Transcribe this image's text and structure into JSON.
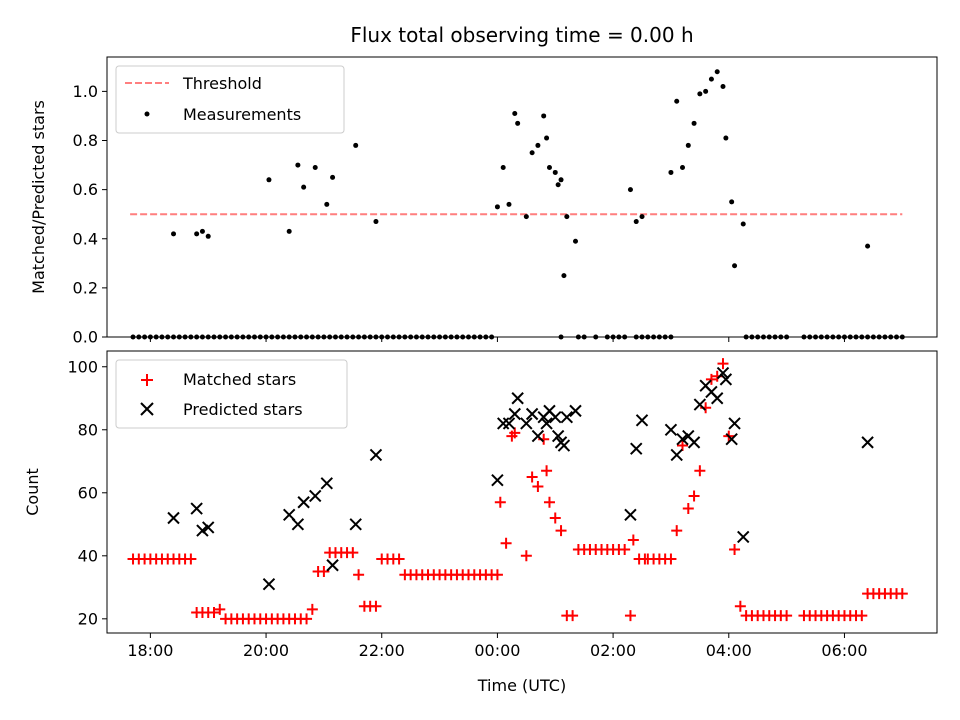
{
  "chart_data": [
    {
      "type": "scatter",
      "title": "Flux total observing time = 0.00 h",
      "xlabel": "",
      "ylabel": "Matched/Predicted stars",
      "xlim": [
        -6.75,
        7.6
      ],
      "ylim": [
        0,
        1.14
      ],
      "yticks": [
        0.0,
        0.2,
        0.4,
        0.6,
        0.8,
        1.0
      ],
      "ytick_labels": [
        "0.0",
        "0.2",
        "0.4",
        "0.6",
        "0.8",
        "1.0"
      ],
      "xticks": [
        -6,
        -4,
        -2,
        0,
        2,
        4,
        6
      ],
      "legend": {
        "position": "top-left"
      },
      "series": [
        {
          "name": "Threshold",
          "kind": "dashed-line",
          "color": "#ff7f7f",
          "x": [
            -6.35,
            7.0
          ],
          "y": [
            0.5,
            0.5
          ]
        },
        {
          "name": "Measurements",
          "kind": "dot",
          "color": "#000000",
          "x": [
            -6.3,
            -6.2,
            -6.1,
            -6.0,
            -5.9,
            -5.8,
            -5.7,
            -5.6,
            -5.5,
            -5.4,
            -5.3,
            -5.2,
            -5.1,
            -5.0,
            -4.9,
            -4.8,
            -4.7,
            -4.6,
            -4.5,
            -4.4,
            -4.3,
            -4.2,
            -4.1,
            -4.0,
            -3.9,
            -3.8,
            -3.7,
            -3.6,
            -3.5,
            -3.4,
            -3.3,
            -3.2,
            -3.1,
            -3.0,
            -2.9,
            -2.8,
            -2.7,
            -2.6,
            -2.5,
            -2.4,
            -2.3,
            -2.2,
            -2.1,
            -2.0,
            -1.9,
            -1.8,
            -1.7,
            -1.6,
            -1.5,
            -1.4,
            -1.3,
            -1.2,
            -1.1,
            -1.0,
            -0.9,
            -0.8,
            -0.7,
            -0.6,
            -0.5,
            -0.4,
            -0.3,
            -0.2,
            -0.1,
            1.1,
            1.4,
            1.5,
            1.7,
            1.9,
            2.0,
            2.1,
            2.2,
            2.4,
            2.5,
            2.6,
            2.7,
            2.8,
            2.9,
            3.0,
            4.3,
            4.4,
            4.5,
            4.6,
            4.7,
            4.8,
            4.9,
            5.0,
            5.3,
            5.4,
            5.5,
            5.6,
            5.7,
            5.8,
            5.9,
            6.0,
            6.1,
            6.2,
            6.3,
            6.4,
            6.5,
            6.6,
            6.7,
            6.8,
            6.9,
            7.0,
            -5.6,
            -5.2,
            -5.1,
            -5.0,
            -3.95,
            -3.6,
            -3.45,
            -3.35,
            -3.15,
            -2.95,
            -2.85,
            -2.45,
            -2.1,
            0.0,
            0.1,
            0.2,
            0.3,
            0.35,
            0.5,
            0.6,
            0.7,
            0.8,
            0.85,
            0.9,
            1.0,
            1.05,
            1.1,
            1.15,
            1.2,
            1.35,
            2.3,
            2.4,
            2.5,
            3.0,
            3.1,
            3.2,
            3.3,
            3.4,
            3.5,
            3.6,
            3.7,
            3.8,
            3.9,
            3.95,
            4.05,
            4.1,
            4.25,
            6.4
          ],
          "y": [
            0,
            0,
            0,
            0,
            0,
            0,
            0,
            0,
            0,
            0,
            0,
            0,
            0,
            0,
            0,
            0,
            0,
            0,
            0,
            0,
            0,
            0,
            0,
            0,
            0,
            0,
            0,
            0,
            0,
            0,
            0,
            0,
            0,
            0,
            0,
            0,
            0,
            0,
            0,
            0,
            0,
            0,
            0,
            0,
            0,
            0,
            0,
            0,
            0,
            0,
            0,
            0,
            0,
            0,
            0,
            0,
            0,
            0,
            0,
            0,
            0,
            0,
            0,
            0,
            0,
            0,
            0,
            0,
            0,
            0,
            0,
            0,
            0,
            0,
            0,
            0,
            0,
            0,
            0,
            0,
            0,
            0,
            0,
            0,
            0,
            0,
            0,
            0,
            0,
            0,
            0,
            0,
            0,
            0,
            0,
            0,
            0,
            0,
            0,
            0,
            0,
            0,
            0,
            0,
            0.42,
            0.42,
            0.43,
            0.41,
            0.64,
            0.43,
            0.7,
            0.61,
            0.69,
            0.54,
            0.65,
            0.78,
            0.47,
            0.53,
            0.69,
            0.54,
            0.91,
            0.87,
            0.49,
            0.75,
            0.78,
            0.9,
            0.81,
            0.69,
            0.67,
            0.62,
            0.64,
            0.25,
            0.49,
            0.39,
            0.6,
            0.47,
            0.49,
            0.67,
            0.96,
            0.69,
            0.78,
            0.87,
            0.99,
            1.0,
            1.05,
            1.08,
            1.02,
            0.81,
            0.55,
            0.29,
            0.46,
            0.37
          ]
        }
      ]
    },
    {
      "type": "scatter",
      "title": "",
      "xlabel": "Time (UTC)",
      "ylabel": "Count",
      "xlim": [
        -6.75,
        7.6
      ],
      "ylim": [
        15.5,
        105
      ],
      "yticks": [
        20,
        40,
        60,
        80,
        100
      ],
      "ytick_labels": [
        "20",
        "40",
        "60",
        "80",
        "100"
      ],
      "xticks": [
        -6,
        -4,
        -2,
        0,
        2,
        4,
        6
      ],
      "xtick_labels": [
        "18:00",
        "20:00",
        "22:00",
        "00:00",
        "02:00",
        "04:00",
        "06:00"
      ],
      "legend": {
        "position": "top-left"
      },
      "series": [
        {
          "name": "Matched stars",
          "kind": "plus",
          "color": "#ff0000",
          "x": [
            -6.3,
            -6.2,
            -6.1,
            -6.0,
            -5.9,
            -5.8,
            -5.7,
            -5.6,
            -5.5,
            -5.4,
            -5.3,
            -5.2,
            -5.1,
            -5.0,
            -4.9,
            -4.8,
            -4.7,
            -4.6,
            -4.5,
            -4.4,
            -4.3,
            -4.2,
            -4.1,
            -4.0,
            -3.9,
            -3.8,
            -3.7,
            -3.6,
            -3.5,
            -3.4,
            -3.3,
            -3.2,
            -3.1,
            -3.0,
            -2.9,
            -2.8,
            -2.7,
            -2.6,
            -2.5,
            -2.4,
            -2.3,
            -2.2,
            -2.1,
            -2.0,
            -1.9,
            -1.8,
            -1.7,
            -1.6,
            -1.5,
            -1.4,
            -1.3,
            -1.2,
            -1.1,
            -1.0,
            -0.9,
            -0.8,
            -0.7,
            -0.6,
            -0.5,
            -0.4,
            -0.3,
            -0.2,
            -0.1,
            0.0,
            0.05,
            0.15,
            0.25,
            0.3,
            0.5,
            0.6,
            0.7,
            0.8,
            0.85,
            0.9,
            1.0,
            1.1,
            1.2,
            1.3,
            1.4,
            1.5,
            1.6,
            1.7,
            1.8,
            1.9,
            2.0,
            2.1,
            2.2,
            2.3,
            2.35,
            2.45,
            2.55,
            2.6,
            2.7,
            2.8,
            2.9,
            3.0,
            3.1,
            3.2,
            3.3,
            3.4,
            3.5,
            3.6,
            3.7,
            3.8,
            3.9,
            4.0,
            4.1,
            4.2,
            4.3,
            4.4,
            4.5,
            4.6,
            4.7,
            4.8,
            4.9,
            5.0,
            5.3,
            5.4,
            5.5,
            5.6,
            5.7,
            5.8,
            5.9,
            6.0,
            6.1,
            6.2,
            6.3,
            6.4,
            6.5,
            6.6,
            6.7,
            6.8,
            6.9,
            7.0
          ],
          "y": [
            39,
            39,
            39,
            39,
            39,
            39,
            39,
            39,
            39,
            39,
            39,
            22,
            22,
            22,
            22,
            23,
            20,
            20,
            20,
            20,
            20,
            20,
            20,
            20,
            20,
            20,
            20,
            20,
            20,
            20,
            20,
            23,
            35,
            35,
            41,
            41,
            41,
            41,
            41,
            34,
            24,
            24,
            24,
            39,
            39,
            39,
            39,
            34,
            34,
            34,
            34,
            34,
            34,
            34,
            34,
            34,
            34,
            34,
            34,
            34,
            34,
            34,
            34,
            34,
            57,
            44,
            78,
            79,
            40,
            65,
            62,
            77,
            67,
            57,
            52,
            48,
            21,
            21,
            42,
            42,
            42,
            42,
            42,
            42,
            42,
            42,
            42,
            21,
            45,
            39,
            39,
            39,
            39,
            39,
            39,
            39,
            48,
            75,
            55,
            59,
            67,
            87,
            96,
            97,
            101,
            78,
            42,
            24,
            21,
            21,
            21,
            21,
            21,
            21,
            21,
            21,
            21,
            21,
            21,
            21,
            21,
            21,
            21,
            21,
            21,
            21,
            21,
            28,
            28,
            28,
            28,
            28,
            28,
            28
          ]
        },
        {
          "name": "Predicted stars",
          "kind": "x",
          "color": "#000000",
          "x": [
            -5.6,
            -5.2,
            -5.1,
            -5.0,
            -3.95,
            -3.6,
            -3.45,
            -3.35,
            -3.15,
            -2.95,
            -2.85,
            -2.45,
            -2.1,
            0.0,
            0.1,
            0.2,
            0.3,
            0.35,
            0.5,
            0.6,
            0.7,
            0.8,
            0.85,
            0.9,
            1.0,
            1.05,
            1.1,
            1.15,
            1.2,
            1.35,
            2.3,
            2.4,
            2.5,
            3.0,
            3.1,
            3.2,
            3.3,
            3.4,
            3.5,
            3.6,
            3.7,
            3.8,
            3.9,
            3.95,
            4.05,
            4.1,
            4.25,
            6.4
          ],
          "y": [
            52,
            55,
            48,
            49,
            31,
            53,
            50,
            57,
            59,
            63,
            37,
            50,
            72,
            64,
            82,
            82,
            85,
            90,
            82,
            85,
            78,
            84,
            82,
            86,
            84,
            78,
            76,
            75,
            84,
            86,
            53,
            74,
            83,
            80,
            72,
            77,
            78,
            76,
            88,
            94,
            92,
            90,
            98,
            96,
            77,
            82,
            46,
            76
          ]
        }
      ]
    }
  ]
}
